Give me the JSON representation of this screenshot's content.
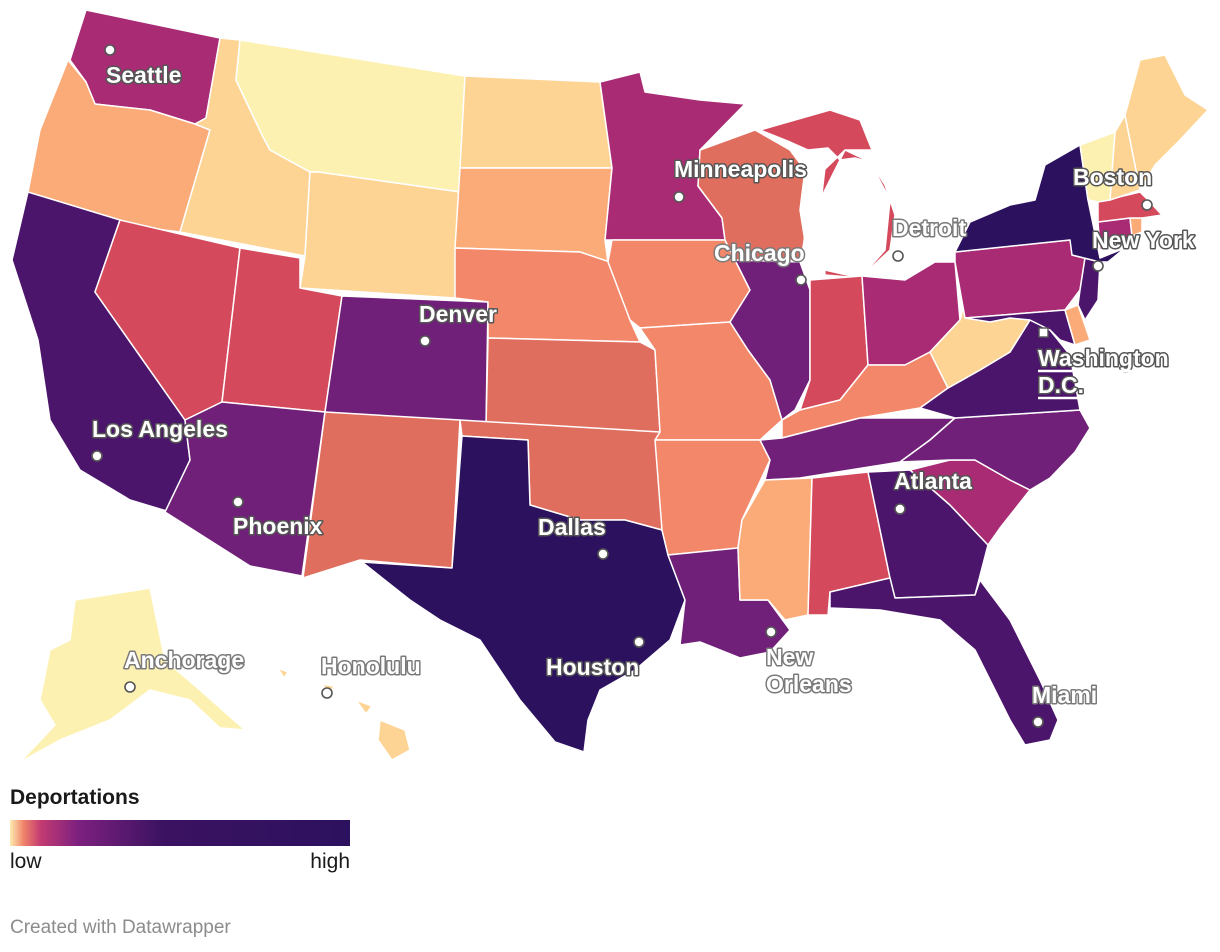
{
  "legend": {
    "title": "Deportations",
    "low_label": "low",
    "high_label": "high",
    "gradient": [
      "#fdecb0",
      "#f0836a",
      "#c33b71",
      "#7d2080",
      "#3b1261",
      "#2c115f"
    ]
  },
  "credit": "Created with Datawrapper",
  "colors": {
    "level1": "#fdf1b2",
    "level2": "#fdd494",
    "level3": "#fbab78",
    "level4": "#f3876a",
    "level5": "#e06e5f",
    "level6": "#d5495c",
    "level7": "#a82b74",
    "level8": "#702078",
    "level9": "#4b156c",
    "level10": "#2c115f"
  },
  "cities": {
    "seattle": "Seattle",
    "minneapolis": "Minneapolis",
    "boston": "Boston",
    "detroit": "Detroit",
    "chicago": "Chicago",
    "new_york": "New York",
    "denver": "Denver",
    "washington_line1": "Washington",
    "washington_line2": "D.C.",
    "los_angeles": "Los Angeles",
    "atlanta": "Atlanta",
    "phoenix": "Phoenix",
    "dallas": "Dallas",
    "anchorage": "Anchorage",
    "honolulu": "Honolulu",
    "new_orleans_line1": "New",
    "new_orleans_line2": "Orleans",
    "houston": "Houston",
    "miami": "Miami"
  }
}
